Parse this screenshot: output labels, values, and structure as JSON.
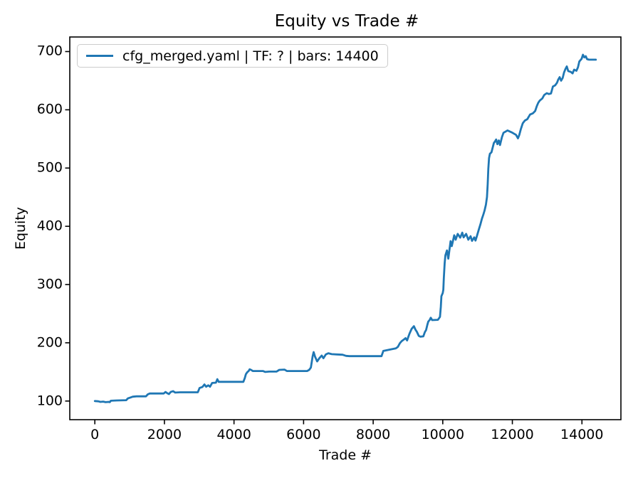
{
  "chart_data": {
    "type": "line",
    "title": "Equity vs Trade #",
    "xlabel": "Trade #",
    "ylabel": "Equity",
    "grid": false,
    "legend_position": "upper left",
    "xlim": [
      -720,
      15120
    ],
    "ylim": [
      68,
      725
    ],
    "xticks": [
      0,
      2000,
      4000,
      6000,
      8000,
      10000,
      12000,
      14000
    ],
    "yticks": [
      100,
      200,
      300,
      400,
      500,
      600,
      700
    ],
    "series": [
      {
        "name": "cfg_merged.yaml | TF: ? | bars: 14400",
        "color": "#1f77b4",
        "points": [
          [
            0,
            100
          ],
          [
            100,
            99.5
          ],
          [
            160,
            98.5
          ],
          [
            240,
            99
          ],
          [
            310,
            98
          ],
          [
            400,
            98.5
          ],
          [
            430,
            98
          ],
          [
            460,
            100.5
          ],
          [
            620,
            101
          ],
          [
            900,
            101.5
          ],
          [
            950,
            104.5
          ],
          [
            1020,
            106
          ],
          [
            1090,
            107.5
          ],
          [
            1200,
            108
          ],
          [
            1470,
            108
          ],
          [
            1520,
            111.5
          ],
          [
            1580,
            113
          ],
          [
            1980,
            113
          ],
          [
            2030,
            115.5
          ],
          [
            2080,
            113.5
          ],
          [
            2130,
            112
          ],
          [
            2180,
            115.5
          ],
          [
            2250,
            117
          ],
          [
            2310,
            114.5
          ],
          [
            2450,
            115
          ],
          [
            2960,
            115
          ],
          [
            3010,
            122.5
          ],
          [
            3090,
            124
          ],
          [
            3150,
            128.5
          ],
          [
            3200,
            124.5
          ],
          [
            3260,
            127
          ],
          [
            3310,
            124.5
          ],
          [
            3370,
            131
          ],
          [
            3480,
            131.5
          ],
          [
            3520,
            137.5
          ],
          [
            3560,
            133
          ],
          [
            4270,
            133
          ],
          [
            4310,
            139.5
          ],
          [
            4340,
            146
          ],
          [
            4380,
            149.5
          ],
          [
            4420,
            151.5
          ],
          [
            4450,
            154.5
          ],
          [
            4490,
            153.5
          ],
          [
            4540,
            151.5
          ],
          [
            4830,
            151.5
          ],
          [
            4900,
            150
          ],
          [
            5010,
            150.5
          ],
          [
            5220,
            150.5
          ],
          [
            5300,
            153.5
          ],
          [
            5450,
            154
          ],
          [
            5520,
            151.5
          ],
          [
            6100,
            151.5
          ],
          [
            6160,
            153.5
          ],
          [
            6210,
            157.5
          ],
          [
            6260,
            177
          ],
          [
            6290,
            184
          ],
          [
            6330,
            176
          ],
          [
            6390,
            168
          ],
          [
            6460,
            174
          ],
          [
            6520,
            178
          ],
          [
            6570,
            173.5
          ],
          [
            6640,
            180
          ],
          [
            6710,
            182
          ],
          [
            6810,
            180.5
          ],
          [
            6960,
            180
          ],
          [
            7120,
            179.5
          ],
          [
            7220,
            177.5
          ],
          [
            7320,
            177
          ],
          [
            8240,
            177
          ],
          [
            8290,
            186
          ],
          [
            8500,
            188.5
          ],
          [
            8650,
            190.5
          ],
          [
            8710,
            193
          ],
          [
            8770,
            199.5
          ],
          [
            8820,
            203
          ],
          [
            8880,
            205.5
          ],
          [
            8930,
            208
          ],
          [
            8975,
            204
          ],
          [
            9015,
            211
          ],
          [
            9045,
            216
          ],
          [
            9105,
            224
          ],
          [
            9170,
            228.5
          ],
          [
            9215,
            222.5
          ],
          [
            9255,
            219
          ],
          [
            9310,
            212
          ],
          [
            9355,
            210.5
          ],
          [
            9440,
            211
          ],
          [
            9485,
            218.5
          ],
          [
            9520,
            222
          ],
          [
            9555,
            230.5
          ],
          [
            9585,
            236.5
          ],
          [
            9620,
            239
          ],
          [
            9655,
            243
          ],
          [
            9695,
            239
          ],
          [
            9860,
            239.5
          ],
          [
            9920,
            244.5
          ],
          [
            9945,
            262
          ],
          [
            9960,
            280
          ],
          [
            10000,
            285.5
          ],
          [
            10015,
            291
          ],
          [
            10030,
            311
          ],
          [
            10055,
            337
          ],
          [
            10075,
            350
          ],
          [
            10120,
            358.5
          ],
          [
            10160,
            344.5
          ],
          [
            10225,
            374.5
          ],
          [
            10260,
            366
          ],
          [
            10330,
            384.5
          ],
          [
            10370,
            377
          ],
          [
            10430,
            387
          ],
          [
            10500,
            380.5
          ],
          [
            10560,
            389
          ],
          [
            10600,
            381
          ],
          [
            10670,
            387
          ],
          [
            10735,
            377
          ],
          [
            10800,
            383
          ],
          [
            10840,
            375
          ],
          [
            10905,
            381
          ],
          [
            10940,
            375.5
          ],
          [
            10980,
            383
          ],
          [
            11040,
            395
          ],
          [
            11080,
            403
          ],
          [
            11125,
            413
          ],
          [
            11160,
            419
          ],
          [
            11200,
            427
          ],
          [
            11240,
            437
          ],
          [
            11270,
            450
          ],
          [
            11290,
            472
          ],
          [
            11310,
            499
          ],
          [
            11330,
            517
          ],
          [
            11355,
            524.5
          ],
          [
            11400,
            527
          ],
          [
            11440,
            536.5
          ],
          [
            11470,
            543
          ],
          [
            11500,
            545.5
          ],
          [
            11535,
            549
          ],
          [
            11570,
            541
          ],
          [
            11610,
            547.5
          ],
          [
            11645,
            539.5
          ],
          [
            11700,
            553
          ],
          [
            11745,
            560.5
          ],
          [
            11860,
            564.5
          ],
          [
            11990,
            561
          ],
          [
            12060,
            558.5
          ],
          [
            12105,
            557
          ],
          [
            12160,
            551
          ],
          [
            12200,
            557
          ],
          [
            12245,
            567
          ],
          [
            12300,
            577
          ],
          [
            12360,
            581.5
          ],
          [
            12430,
            584
          ],
          [
            12470,
            588
          ],
          [
            12510,
            592
          ],
          [
            12590,
            594
          ],
          [
            12655,
            598
          ],
          [
            12700,
            606
          ],
          [
            12745,
            612
          ],
          [
            12790,
            616
          ],
          [
            12860,
            619.5
          ],
          [
            12915,
            625.5
          ],
          [
            12990,
            628.5
          ],
          [
            13050,
            627
          ],
          [
            13110,
            628
          ],
          [
            13165,
            640
          ],
          [
            13230,
            642
          ],
          [
            13285,
            646.5
          ],
          [
            13320,
            652
          ],
          [
            13360,
            656
          ],
          [
            13400,
            650
          ],
          [
            13445,
            654.5
          ],
          [
            13485,
            664
          ],
          [
            13525,
            670
          ],
          [
            13565,
            674.5
          ],
          [
            13605,
            666.5
          ],
          [
            13680,
            665
          ],
          [
            13730,
            662.5
          ],
          [
            13775,
            669
          ],
          [
            13840,
            667
          ],
          [
            13885,
            673
          ],
          [
            13925,
            683
          ],
          [
            13990,
            687.5
          ],
          [
            14030,
            694.5
          ],
          [
            14070,
            690
          ],
          [
            14110,
            692
          ],
          [
            14145,
            687
          ],
          [
            14205,
            686
          ],
          [
            14400,
            686
          ]
        ]
      }
    ]
  },
  "colors": {
    "line": "#1f77b4",
    "axes": "#000000",
    "text": "#000000",
    "legend_border": "#cccccc",
    "background": "#ffffff"
  }
}
